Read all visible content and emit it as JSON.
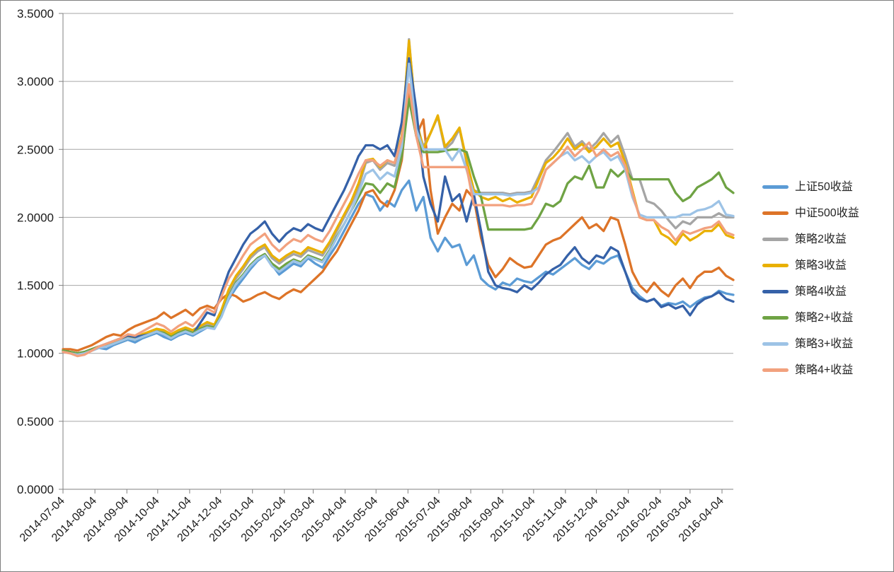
{
  "chart_data": {
    "type": "line",
    "title": "",
    "xlabel": "",
    "ylabel": "",
    "ylim": [
      0,
      3.5
    ],
    "grid": "horizontal",
    "legend_position": "right",
    "axis_color": "#808080",
    "gridline_color": "#a6a6a6",
    "tick_text_color": "#1a1a1a",
    "y_ticks": [
      0,
      0.5,
      1.0,
      1.5,
      2.0,
      2.5,
      3.0,
      3.5
    ],
    "y_tick_labels": [
      "0.0000",
      "0.5000",
      "1.0000",
      "1.5000",
      "2.0000",
      "2.5000",
      "3.0000",
      "3.5000"
    ],
    "x_labels": [
      "2014-07-04",
      "2014-08-04",
      "2014-09-04",
      "2014-10-04",
      "2014-11-04",
      "2014-12-04",
      "2015-01-04",
      "2015-02-04",
      "2015-03-04",
      "2015-04-04",
      "2015-05-04",
      "2015-06-04",
      "2015-07-04",
      "2015-08-04",
      "2015-09-04",
      "2015-10-04",
      "2015-11-04",
      "2015-12-04",
      "2016-01-04",
      "2016-02-04",
      "2016-03-04",
      "2016-04-04"
    ],
    "x_label_week_index": [
      0,
      4.43,
      8.86,
      13.14,
      17.57,
      21.86,
      26.29,
      30.71,
      34.71,
      39.14,
      43.43,
      47.86,
      52.14,
      56.57,
      61.0,
      65.29,
      69.71,
      74.0,
      78.43,
      82.86,
      87.0,
      91.43
    ],
    "x_unit": "weekly samples from 2014-07-04 to 2016-04-19",
    "series": [
      {
        "name": "上证50收益",
        "color": "#5B9BD5",
        "values": [
          1.02,
          1.01,
          0.99,
          1.0,
          1.02,
          1.04,
          1.03,
          1.06,
          1.08,
          1.1,
          1.08,
          1.11,
          1.13,
          1.15,
          1.12,
          1.1,
          1.13,
          1.15,
          1.13,
          1.16,
          1.19,
          1.18,
          1.28,
          1.4,
          1.48,
          1.55,
          1.62,
          1.68,
          1.72,
          1.65,
          1.58,
          1.62,
          1.66,
          1.64,
          1.7,
          1.66,
          1.63,
          1.72,
          1.8,
          1.9,
          2.0,
          2.1,
          2.17,
          2.15,
          2.05,
          2.12,
          2.08,
          2.2,
          2.27,
          2.05,
          2.15,
          1.85,
          1.75,
          1.85,
          1.78,
          1.8,
          1.65,
          1.72,
          1.55,
          1.5,
          1.47,
          1.52,
          1.5,
          1.55,
          1.53,
          1.52,
          1.56,
          1.6,
          1.58,
          1.62,
          1.66,
          1.7,
          1.65,
          1.62,
          1.68,
          1.66,
          1.7,
          1.72,
          1.6,
          1.48,
          1.42,
          1.38,
          1.4,
          1.35,
          1.37,
          1.36,
          1.38,
          1.34,
          1.38,
          1.41,
          1.42,
          1.46,
          1.44,
          1.43
        ]
      },
      {
        "name": "中证500收益",
        "color": "#DD7428",
        "values": [
          1.03,
          1.03,
          1.02,
          1.04,
          1.06,
          1.09,
          1.12,
          1.14,
          1.13,
          1.17,
          1.2,
          1.22,
          1.24,
          1.26,
          1.3,
          1.26,
          1.29,
          1.32,
          1.28,
          1.33,
          1.35,
          1.33,
          1.4,
          1.44,
          1.42,
          1.38,
          1.4,
          1.43,
          1.45,
          1.42,
          1.4,
          1.44,
          1.47,
          1.45,
          1.5,
          1.55,
          1.6,
          1.68,
          1.75,
          1.85,
          1.95,
          2.05,
          2.18,
          2.2,
          2.12,
          2.08,
          2.2,
          2.42,
          2.93,
          2.6,
          2.72,
          2.2,
          1.88,
          2.0,
          2.1,
          2.05,
          2.2,
          2.14,
          1.85,
          1.65,
          1.56,
          1.62,
          1.7,
          1.66,
          1.63,
          1.64,
          1.72,
          1.8,
          1.83,
          1.85,
          1.9,
          1.95,
          2.0,
          1.92,
          1.95,
          1.9,
          2.0,
          1.98,
          1.8,
          1.6,
          1.5,
          1.45,
          1.52,
          1.46,
          1.42,
          1.5,
          1.55,
          1.48,
          1.56,
          1.6,
          1.6,
          1.63,
          1.57,
          1.54
        ]
      },
      {
        "name": "策略2收益",
        "color": "#A5A5A5",
        "values": [
          1.02,
          1.01,
          1.0,
          1.01,
          1.03,
          1.05,
          1.06,
          1.08,
          1.1,
          1.12,
          1.11,
          1.13,
          1.15,
          1.17,
          1.16,
          1.13,
          1.16,
          1.18,
          1.16,
          1.19,
          1.22,
          1.2,
          1.3,
          1.45,
          1.55,
          1.62,
          1.7,
          1.75,
          1.78,
          1.7,
          1.66,
          1.7,
          1.73,
          1.71,
          1.76,
          1.74,
          1.72,
          1.8,
          1.9,
          2.0,
          2.1,
          2.22,
          2.4,
          2.42,
          2.35,
          2.4,
          2.38,
          2.58,
          3.31,
          2.7,
          2.52,
          2.62,
          2.74,
          2.5,
          2.55,
          2.65,
          2.4,
          2.2,
          2.18,
          2.18,
          2.18,
          2.18,
          2.17,
          2.18,
          2.18,
          2.19,
          2.3,
          2.42,
          2.48,
          2.55,
          2.62,
          2.52,
          2.56,
          2.5,
          2.55,
          2.62,
          2.55,
          2.6,
          2.45,
          2.28,
          2.28,
          2.12,
          2.1,
          2.05,
          1.98,
          1.92,
          1.97,
          1.95,
          2.0,
          2.0,
          2.0,
          2.03,
          2.0,
          2.0
        ]
      },
      {
        "name": "策略3收益",
        "color": "#E9B000",
        "values": [
          1.02,
          1.01,
          1.0,
          1.01,
          1.03,
          1.05,
          1.06,
          1.08,
          1.1,
          1.12,
          1.11,
          1.14,
          1.16,
          1.18,
          1.17,
          1.14,
          1.17,
          1.19,
          1.17,
          1.2,
          1.23,
          1.21,
          1.32,
          1.47,
          1.57,
          1.64,
          1.72,
          1.77,
          1.8,
          1.72,
          1.68,
          1.72,
          1.75,
          1.73,
          1.78,
          1.76,
          1.74,
          1.82,
          1.92,
          2.02,
          2.12,
          2.25,
          2.42,
          2.43,
          2.37,
          2.42,
          2.4,
          2.6,
          3.3,
          2.72,
          2.5,
          2.62,
          2.75,
          2.52,
          2.58,
          2.66,
          2.42,
          2.2,
          2.15,
          2.13,
          2.15,
          2.12,
          2.14,
          2.11,
          2.13,
          2.15,
          2.28,
          2.4,
          2.44,
          2.5,
          2.58,
          2.5,
          2.54,
          2.48,
          2.52,
          2.58,
          2.52,
          2.55,
          2.4,
          2.2,
          2.0,
          1.98,
          1.98,
          1.88,
          1.85,
          1.8,
          1.88,
          1.83,
          1.86,
          1.9,
          1.9,
          1.95,
          1.87,
          1.85
        ]
      },
      {
        "name": "策略4收益",
        "color": "#3561A8",
        "values": [
          1.02,
          1.01,
          1.0,
          1.01,
          1.03,
          1.05,
          1.07,
          1.09,
          1.11,
          1.13,
          1.12,
          1.13,
          1.14,
          1.16,
          1.14,
          1.11,
          1.14,
          1.16,
          1.14,
          1.22,
          1.3,
          1.28,
          1.45,
          1.6,
          1.7,
          1.8,
          1.88,
          1.92,
          1.97,
          1.88,
          1.82,
          1.88,
          1.92,
          1.9,
          1.95,
          1.92,
          1.9,
          2.0,
          2.1,
          2.2,
          2.32,
          2.45,
          2.53,
          2.53,
          2.5,
          2.53,
          2.45,
          2.7,
          3.17,
          2.8,
          2.3,
          2.1,
          1.97,
          2.3,
          2.12,
          2.17,
          1.97,
          2.17,
          1.9,
          1.6,
          1.5,
          1.48,
          1.47,
          1.45,
          1.5,
          1.47,
          1.52,
          1.58,
          1.62,
          1.65,
          1.72,
          1.78,
          1.7,
          1.66,
          1.72,
          1.7,
          1.78,
          1.75,
          1.6,
          1.45,
          1.4,
          1.38,
          1.4,
          1.34,
          1.36,
          1.33,
          1.35,
          1.28,
          1.36,
          1.4,
          1.42,
          1.45,
          1.4,
          1.38
        ]
      },
      {
        "name": "策略2+收益",
        "color": "#6FA344",
        "values": [
          1.02,
          1.01,
          1.0,
          1.01,
          1.03,
          1.05,
          1.06,
          1.07,
          1.09,
          1.11,
          1.1,
          1.12,
          1.14,
          1.16,
          1.15,
          1.12,
          1.15,
          1.17,
          1.15,
          1.18,
          1.2,
          1.19,
          1.28,
          1.42,
          1.52,
          1.58,
          1.65,
          1.7,
          1.73,
          1.66,
          1.62,
          1.66,
          1.69,
          1.67,
          1.72,
          1.7,
          1.68,
          1.76,
          1.86,
          1.95,
          2.05,
          2.15,
          2.25,
          2.24,
          2.18,
          2.25,
          2.22,
          2.45,
          2.87,
          2.6,
          2.48,
          2.48,
          2.48,
          2.49,
          2.5,
          2.5,
          2.48,
          2.3,
          2.15,
          1.91,
          1.91,
          1.91,
          1.91,
          1.91,
          1.91,
          1.92,
          2.0,
          2.1,
          2.08,
          2.12,
          2.25,
          2.3,
          2.28,
          2.38,
          2.22,
          2.22,
          2.35,
          2.3,
          2.35,
          2.28,
          2.28,
          2.28,
          2.28,
          2.28,
          2.28,
          2.18,
          2.12,
          2.15,
          2.22,
          2.25,
          2.28,
          2.33,
          2.22,
          2.18
        ]
      },
      {
        "name": "策略3+收益",
        "color": "#9DC3E6",
        "values": [
          1.01,
          1.0,
          0.99,
          1.0,
          1.02,
          1.04,
          1.05,
          1.07,
          1.09,
          1.11,
          1.1,
          1.12,
          1.14,
          1.16,
          1.14,
          1.11,
          1.14,
          1.16,
          1.14,
          1.17,
          1.19,
          1.18,
          1.27,
          1.41,
          1.51,
          1.57,
          1.64,
          1.69,
          1.72,
          1.64,
          1.6,
          1.64,
          1.68,
          1.66,
          1.71,
          1.69,
          1.67,
          1.75,
          1.85,
          1.95,
          2.05,
          2.18,
          2.32,
          2.35,
          2.28,
          2.33,
          2.3,
          2.52,
          3.13,
          2.65,
          2.5,
          2.5,
          2.5,
          2.5,
          2.42,
          2.5,
          2.35,
          2.17,
          2.17,
          2.17,
          2.17,
          2.17,
          2.16,
          2.17,
          2.17,
          2.18,
          2.22,
          2.35,
          2.4,
          2.45,
          2.48,
          2.42,
          2.45,
          2.4,
          2.45,
          2.48,
          2.42,
          2.45,
          2.35,
          2.15,
          2.02,
          2.0,
          2.0,
          2.0,
          2.0,
          2.0,
          2.02,
          2.02,
          2.05,
          2.06,
          2.08,
          2.12,
          2.02,
          2.01
        ]
      },
      {
        "name": "策略4+收益",
        "color": "#F2A17E",
        "values": [
          1.01,
          1.0,
          0.98,
          0.99,
          1.02,
          1.05,
          1.07,
          1.09,
          1.11,
          1.14,
          1.13,
          1.16,
          1.19,
          1.22,
          1.2,
          1.16,
          1.2,
          1.23,
          1.2,
          1.26,
          1.33,
          1.3,
          1.42,
          1.55,
          1.63,
          1.72,
          1.8,
          1.84,
          1.88,
          1.8,
          1.75,
          1.8,
          1.84,
          1.82,
          1.87,
          1.84,
          1.82,
          1.9,
          2.0,
          2.1,
          2.2,
          2.32,
          2.42,
          2.42,
          2.38,
          2.42,
          2.4,
          2.58,
          2.98,
          2.6,
          2.37,
          2.37,
          2.37,
          2.37,
          2.37,
          2.37,
          2.37,
          2.09,
          2.09,
          2.09,
          2.09,
          2.09,
          2.08,
          2.09,
          2.09,
          2.1,
          2.2,
          2.35,
          2.4,
          2.45,
          2.52,
          2.45,
          2.5,
          2.55,
          2.45,
          2.5,
          2.45,
          2.48,
          2.38,
          2.18,
          2.0,
          1.98,
          1.98,
          1.93,
          1.9,
          1.83,
          1.9,
          1.88,
          1.9,
          1.92,
          1.93,
          1.97,
          1.89,
          1.87
        ]
      }
    ]
  }
}
